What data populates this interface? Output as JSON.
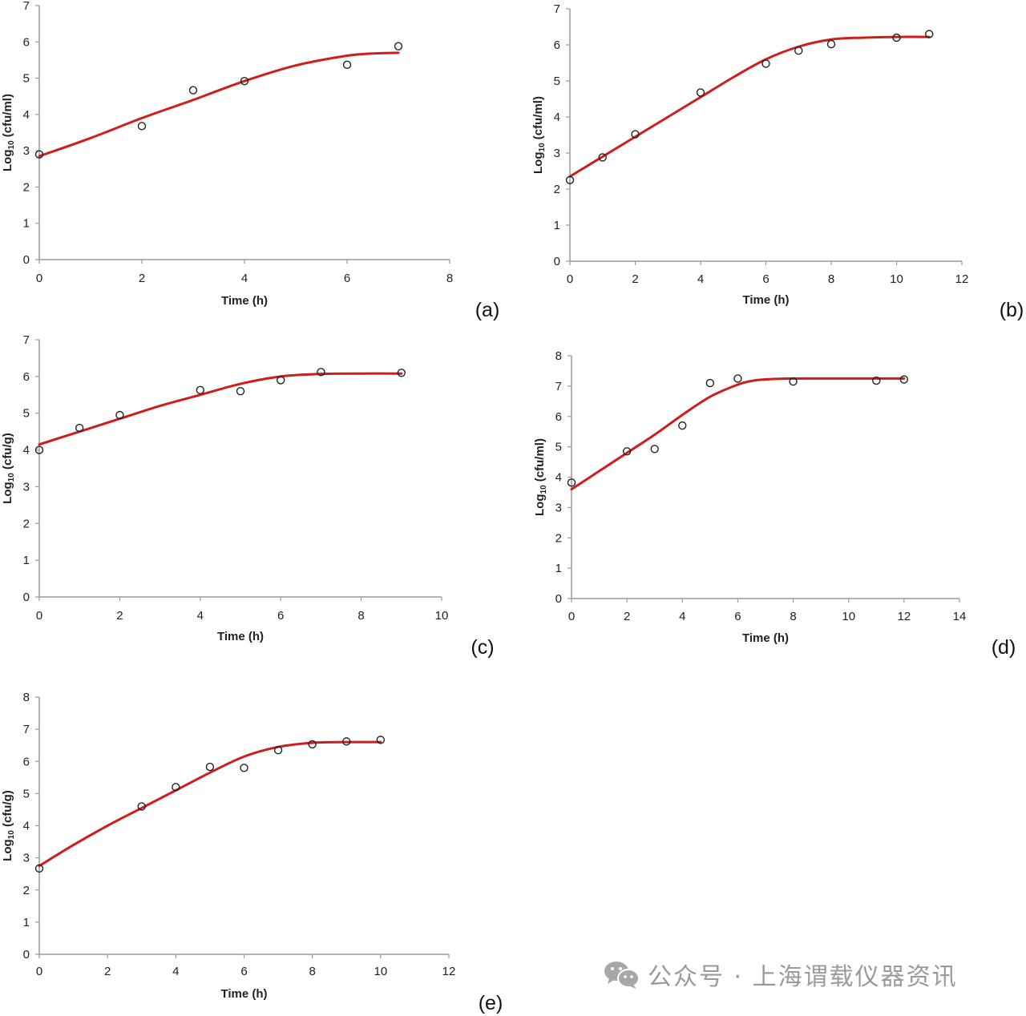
{
  "chart_data": [
    {
      "id": "a",
      "type": "scatter",
      "panel_label": "(a)",
      "xlabel": "Time (h)",
      "ylabel_main": "Log",
      "ylabel_sub": "10",
      "ylabel_unit": " (cfu/ml)",
      "xlim": [
        0,
        8
      ],
      "ylim": [
        0,
        7
      ],
      "xticks": [
        0,
        2,
        4,
        6,
        8
      ],
      "yticks": [
        0,
        1,
        2,
        3,
        4,
        5,
        6,
        7
      ],
      "grid": false,
      "points": {
        "x": [
          0,
          2,
          3,
          4,
          6,
          7
        ],
        "y": [
          2.9,
          3.68,
          4.67,
          4.92,
          5.37,
          5.88
        ]
      },
      "fit": {
        "x": [
          0,
          1,
          2,
          3,
          4,
          5,
          6,
          6.5,
          7
        ],
        "y": [
          2.85,
          3.35,
          3.9,
          4.4,
          4.92,
          5.35,
          5.62,
          5.68,
          5.7
        ]
      }
    },
    {
      "id": "b",
      "type": "scatter",
      "panel_label": "(b)",
      "xlabel": "Time (h)",
      "ylabel_main": "Log",
      "ylabel_sub": "10",
      "ylabel_unit": " (cfu/ml)",
      "xlim": [
        0,
        12
      ],
      "ylim": [
        0,
        7
      ],
      "xticks": [
        0,
        2,
        4,
        6,
        8,
        10,
        12
      ],
      "yticks": [
        0,
        1,
        2,
        3,
        4,
        5,
        6,
        7
      ],
      "grid": false,
      "points": {
        "x": [
          0,
          1,
          2,
          4,
          6,
          7,
          8,
          10,
          11
        ],
        "y": [
          2.25,
          2.88,
          3.52,
          4.68,
          5.48,
          5.84,
          6.02,
          6.2,
          6.3
        ]
      },
      "fit": {
        "x": [
          0,
          1,
          2,
          3,
          4,
          5,
          6,
          7,
          8,
          9,
          10,
          11
        ],
        "y": [
          2.35,
          2.9,
          3.45,
          4.0,
          4.55,
          5.1,
          5.6,
          5.95,
          6.15,
          6.2,
          6.22,
          6.22
        ]
      }
    },
    {
      "id": "c",
      "type": "scatter",
      "panel_label": "(c)",
      "xlabel": "Time (h)",
      "ylabel_main": "Log",
      "ylabel_sub": "10",
      "ylabel_unit": " (cfu/g)",
      "xlim": [
        0,
        10
      ],
      "ylim": [
        0,
        7
      ],
      "xticks": [
        0,
        2,
        4,
        6,
        8,
        10
      ],
      "yticks": [
        0,
        1,
        2,
        3,
        4,
        5,
        6,
        7
      ],
      "grid": false,
      "points": {
        "x": [
          0,
          1,
          2,
          4,
          5,
          6,
          7,
          9
        ],
        "y": [
          4.0,
          4.6,
          4.95,
          5.63,
          5.6,
          5.9,
          6.12,
          6.1
        ]
      },
      "fit": {
        "x": [
          0,
          1,
          2,
          3,
          4,
          5,
          6,
          7,
          8,
          9
        ],
        "y": [
          4.15,
          4.5,
          4.85,
          5.2,
          5.5,
          5.8,
          6.0,
          6.07,
          6.08,
          6.08
        ]
      }
    },
    {
      "id": "d",
      "type": "scatter",
      "panel_label": "(d)",
      "xlabel": "Time (h)",
      "ylabel_main": "Log",
      "ylabel_sub": "10",
      "ylabel_unit": " (cfu/ml)",
      "xlim": [
        0,
        14
      ],
      "ylim": [
        0,
        8
      ],
      "xticks": [
        0,
        2,
        4,
        6,
        8,
        10,
        12,
        14
      ],
      "yticks": [
        0,
        1,
        2,
        3,
        4,
        5,
        6,
        7,
        8
      ],
      "grid": false,
      "points": {
        "x": [
          0,
          2,
          3,
          4,
          5,
          6,
          8,
          11,
          12
        ],
        "y": [
          3.82,
          4.85,
          4.93,
          5.7,
          7.1,
          7.25,
          7.15,
          7.18,
          7.22
        ]
      },
      "fit": {
        "x": [
          0,
          1,
          2,
          3,
          4,
          5,
          6,
          6.5,
          7,
          8,
          10,
          12
        ],
        "y": [
          3.6,
          4.2,
          4.8,
          5.4,
          6.05,
          6.65,
          7.05,
          7.17,
          7.22,
          7.25,
          7.25,
          7.25
        ]
      }
    },
    {
      "id": "e",
      "type": "scatter",
      "panel_label": "(e)",
      "xlabel": "Time (h)",
      "ylabel_main": "Log",
      "ylabel_sub": "10",
      "ylabel_unit": " (cfu/g)",
      "xlim": [
        0,
        12
      ],
      "ylim": [
        0,
        8
      ],
      "xticks": [
        0,
        2,
        4,
        6,
        8,
        10,
        12
      ],
      "yticks": [
        0,
        1,
        2,
        3,
        4,
        5,
        6,
        7,
        8
      ],
      "grid": false,
      "points": {
        "x": [
          0,
          3,
          4,
          5,
          6,
          7,
          8,
          9,
          10
        ],
        "y": [
          2.67,
          4.6,
          5.2,
          5.83,
          5.8,
          6.35,
          6.53,
          6.62,
          6.67
        ]
      },
      "fit": {
        "x": [
          0,
          1,
          2,
          3,
          4,
          5,
          6,
          7,
          8,
          9,
          10
        ],
        "y": [
          2.75,
          3.4,
          4.0,
          4.55,
          5.1,
          5.65,
          6.15,
          6.45,
          6.58,
          6.6,
          6.6
        ]
      }
    }
  ],
  "colors": {
    "fit_line": "#d01c1c",
    "axis": "#9a9a9a",
    "marker": "#222222",
    "watermark": "#9a9a9a"
  },
  "watermark": {
    "icon": "wechat-icon",
    "text": "公众号 · 上海谓载仪器资讯"
  }
}
